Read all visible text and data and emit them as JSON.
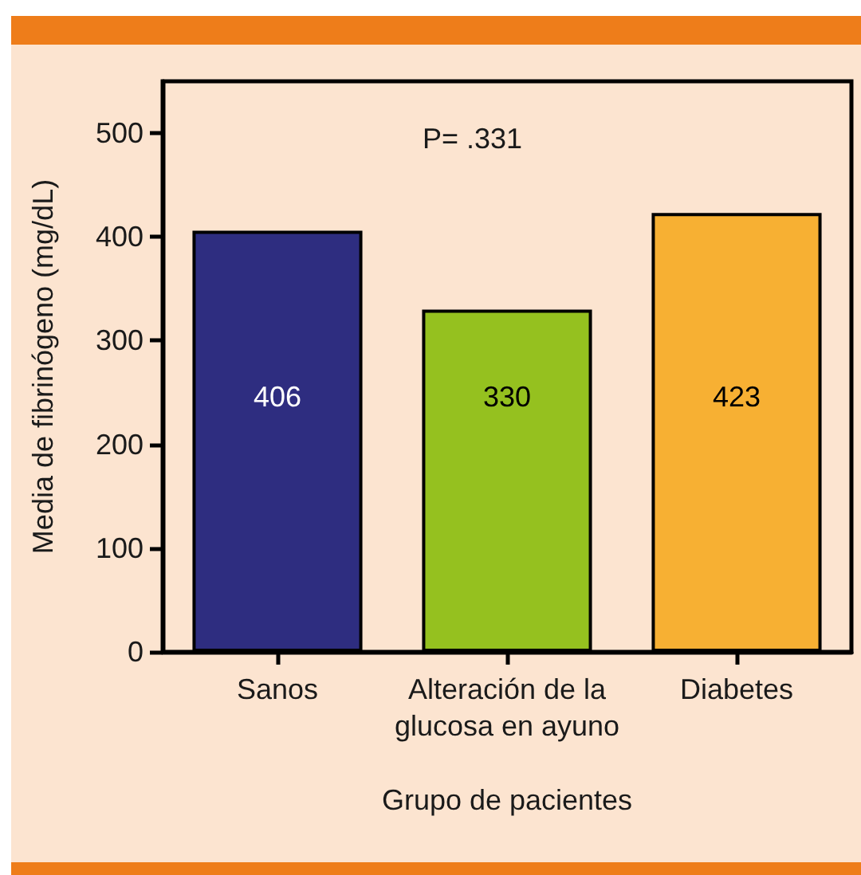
{
  "chart_data": {
    "type": "bar",
    "xlabel": "Grupo de pacientes",
    "ylabel": "Media de fibrinógeno (mg/dL)",
    "categories": [
      "Sanos",
      "Alteración de la\nglucosa en ayuno",
      "Diabetes"
    ],
    "values": [
      406,
      330,
      423
    ],
    "colors": [
      "#2e2d80",
      "#95c11f",
      "#f7b033"
    ],
    "data_labels": true,
    "ylim": [
      0,
      550
    ],
    "yticks": [
      0,
      100,
      200,
      300,
      400,
      500
    ],
    "grid": false,
    "annotations": [
      "P= .331"
    ]
  }
}
